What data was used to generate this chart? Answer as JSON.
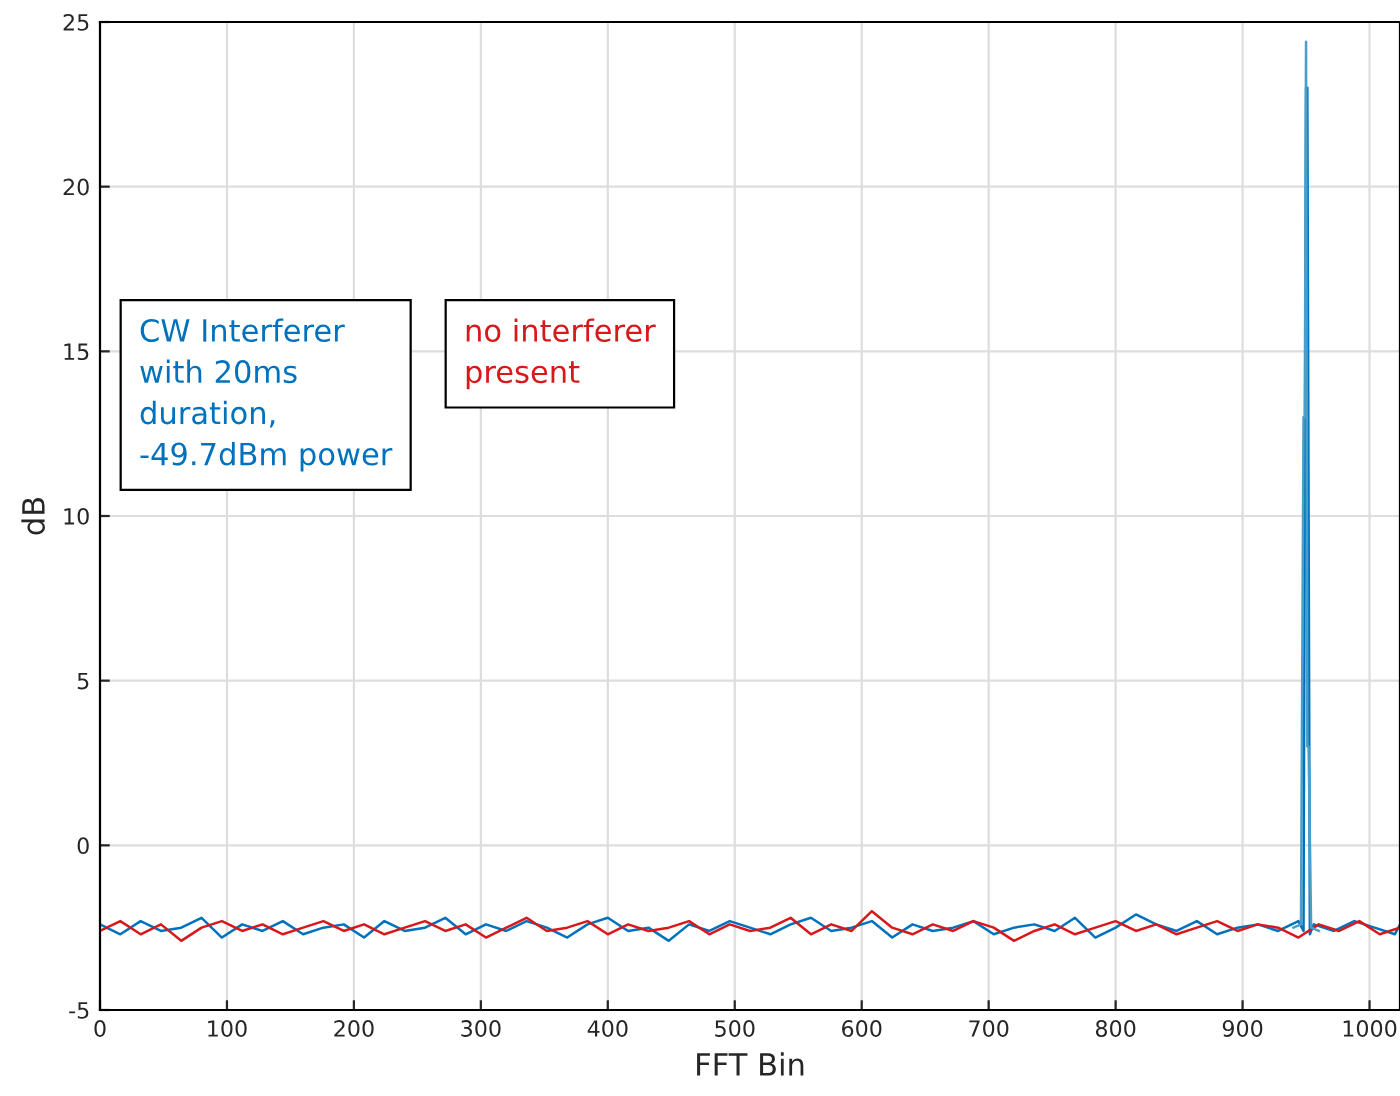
{
  "chart_data": {
    "type": "line",
    "xlabel": "FFT Bin",
    "ylabel": "dB",
    "xlim": [
      0,
      1024
    ],
    "ylim": [
      -5,
      25
    ],
    "xticks": [
      0,
      100,
      200,
      300,
      400,
      500,
      600,
      700,
      800,
      900,
      1000
    ],
    "yticks": [
      -5,
      0,
      5,
      10,
      15,
      20,
      25
    ],
    "grid": true,
    "annotations": [
      "CW Interferer\nwith 20ms\nduration,\n-49.7dBm power",
      "no interferer\npresent"
    ],
    "series": [
      {
        "color": "#0072bd",
        "x": [
          0,
          16,
          32,
          48,
          64,
          80,
          96,
          112,
          128,
          144,
          160,
          176,
          192,
          208,
          224,
          240,
          256,
          272,
          288,
          304,
          320,
          336,
          352,
          368,
          384,
          400,
          416,
          432,
          448,
          464,
          480,
          496,
          512,
          528,
          544,
          560,
          576,
          592,
          608,
          624,
          640,
          656,
          672,
          688,
          704,
          720,
          736,
          752,
          768,
          784,
          800,
          816,
          832,
          848,
          864,
          880,
          896,
          912,
          928,
          944,
          948,
          950,
          951,
          953,
          956,
          972,
          988,
          1004,
          1020,
          1024
        ],
        "values": [
          -2.4,
          -2.7,
          -2.3,
          -2.6,
          -2.5,
          -2.2,
          -2.8,
          -2.4,
          -2.6,
          -2.3,
          -2.7,
          -2.5,
          -2.4,
          -2.8,
          -2.3,
          -2.6,
          -2.5,
          -2.2,
          -2.7,
          -2.4,
          -2.6,
          -2.3,
          -2.5,
          -2.8,
          -2.4,
          -2.2,
          -2.6,
          -2.5,
          -2.9,
          -2.4,
          -2.6,
          -2.3,
          -2.5,
          -2.7,
          -2.4,
          -2.2,
          -2.6,
          -2.5,
          -2.3,
          -2.8,
          -2.4,
          -2.6,
          -2.5,
          -2.3,
          -2.7,
          -2.5,
          -2.4,
          -2.6,
          -2.2,
          -2.8,
          -2.5,
          -2.1,
          -2.4,
          -2.6,
          -2.3,
          -2.7,
          -2.5,
          -2.4,
          -2.6,
          -2.3,
          -2.6,
          23.0,
          23.0,
          -2.7,
          -2.4,
          -2.6,
          -2.3,
          -2.5,
          -2.7,
          -2.4
        ]
      },
      {
        "color": "#d7191c",
        "x": [
          0,
          16,
          32,
          48,
          64,
          80,
          96,
          112,
          128,
          144,
          160,
          176,
          192,
          208,
          224,
          240,
          256,
          272,
          288,
          304,
          320,
          336,
          352,
          368,
          384,
          400,
          416,
          432,
          448,
          464,
          480,
          496,
          512,
          528,
          544,
          560,
          576,
          592,
          608,
          624,
          640,
          656,
          672,
          688,
          704,
          720,
          736,
          752,
          768,
          784,
          800,
          816,
          832,
          848,
          864,
          880,
          896,
          912,
          928,
          944,
          960,
          976,
          992,
          1008,
          1024
        ],
        "values": [
          -2.6,
          -2.3,
          -2.7,
          -2.4,
          -2.9,
          -2.5,
          -2.3,
          -2.6,
          -2.4,
          -2.7,
          -2.5,
          -2.3,
          -2.6,
          -2.4,
          -2.7,
          -2.5,
          -2.3,
          -2.6,
          -2.4,
          -2.8,
          -2.5,
          -2.2,
          -2.6,
          -2.5,
          -2.3,
          -2.7,
          -2.4,
          -2.6,
          -2.5,
          -2.3,
          -2.7,
          -2.4,
          -2.6,
          -2.5,
          -2.2,
          -2.7,
          -2.4,
          -2.6,
          -2.0,
          -2.5,
          -2.7,
          -2.4,
          -2.6,
          -2.3,
          -2.5,
          -2.9,
          -2.6,
          -2.4,
          -2.7,
          -2.5,
          -2.3,
          -2.6,
          -2.4,
          -2.7,
          -2.5,
          -2.3,
          -2.6,
          -2.4,
          -2.5,
          -2.8,
          -2.4,
          -2.6,
          -2.3,
          -2.7,
          -2.5
        ]
      },
      {
        "color": "#4a9fc9",
        "x": [
          940,
          946,
          948,
          949,
          950,
          951,
          952,
          954,
          960
        ],
        "values": [
          -2.5,
          -2.4,
          13.0,
          13.0,
          24.4,
          3.0,
          3.0,
          -2.5,
          -2.6
        ]
      }
    ]
  }
}
